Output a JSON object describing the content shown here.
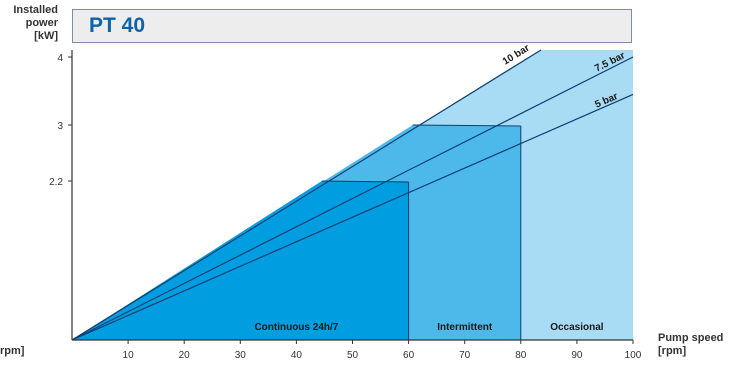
{
  "chart_data": {
    "type": "area",
    "title": "PT 40",
    "ylabel": "Installed power [kW]",
    "xlabel": "Pump speed [rpm]",
    "xlabel_left_fragment": "rpm]",
    "xlim": [
      0,
      100
    ],
    "ylim": [
      0,
      4
    ],
    "x_ticks": [
      10,
      20,
      30,
      40,
      50,
      60,
      70,
      80,
      90,
      100
    ],
    "y_ticks": [
      {
        "value": 2.2,
        "label": "2.2"
      },
      {
        "value": 3,
        "label": "3"
      },
      {
        "value": 4,
        "label": "4"
      }
    ],
    "grid": false,
    "series": [
      {
        "name": "10 bar",
        "x": [
          0,
          100
        ],
        "y": [
          0,
          4.94
        ]
      },
      {
        "name": "7.5 bar",
        "x": [
          0,
          100
        ],
        "y": [
          0,
          4.0
        ]
      },
      {
        "name": "5 bar",
        "x": [
          0,
          100
        ],
        "y": [
          0,
          3.45
        ]
      }
    ],
    "zones": [
      {
        "label": "Continuous 24h/7",
        "x_max": 60,
        "power_max": 2.2,
        "color": "#009ee0"
      },
      {
        "label": "Intermittent",
        "x_max": 80,
        "power_max": 3,
        "color": "#4db9ea"
      },
      {
        "label": "Occasional",
        "x_max": 100,
        "power_max": 4,
        "color": "#a8dbf4"
      }
    ],
    "colors": {
      "line": "#0b3f73",
      "axis": "#333333",
      "title": "#0f63a8"
    }
  }
}
